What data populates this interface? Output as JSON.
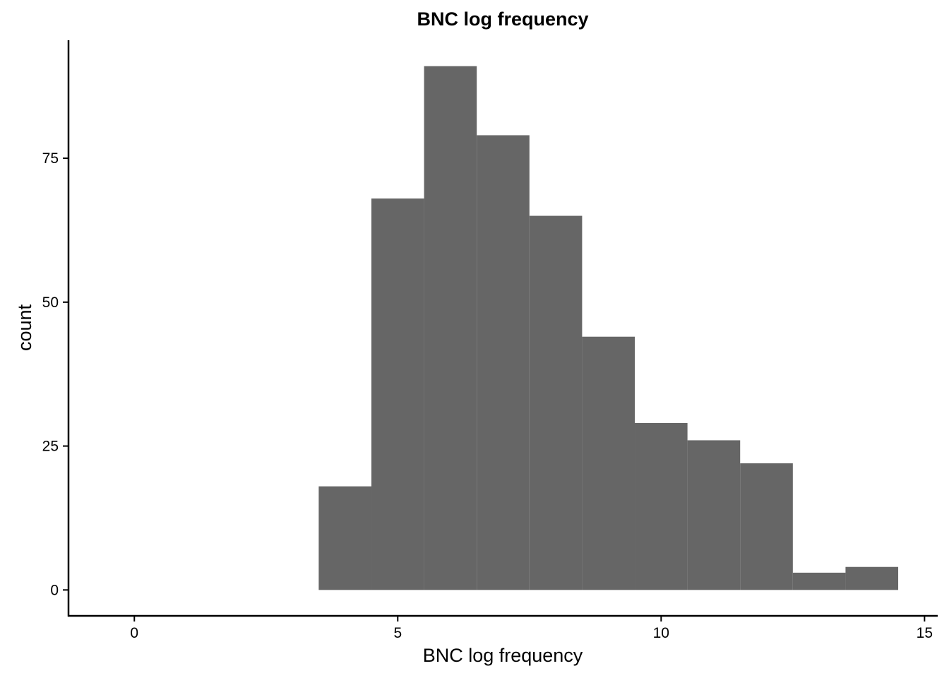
{
  "chart_data": {
    "type": "bar",
    "subtype": "histogram",
    "title": "BNC log frequency",
    "xlabel": "BNC log frequency",
    "ylabel": "count",
    "bins": [
      {
        "x0": 3.5,
        "x1": 4.5,
        "count": 18
      },
      {
        "x0": 4.5,
        "x1": 5.5,
        "count": 68
      },
      {
        "x0": 5.5,
        "x1": 6.5,
        "count": 91
      },
      {
        "x0": 6.5,
        "x1": 7.5,
        "count": 79
      },
      {
        "x0": 7.5,
        "x1": 8.5,
        "count": 65
      },
      {
        "x0": 8.5,
        "x1": 9.5,
        "count": 44
      },
      {
        "x0": 9.5,
        "x1": 10.5,
        "count": 29
      },
      {
        "x0": 10.5,
        "x1": 11.5,
        "count": 26
      },
      {
        "x0": 11.5,
        "x1": 12.5,
        "count": 22
      },
      {
        "x0": 12.5,
        "x1": 13.5,
        "count": 3
      },
      {
        "x0": 13.5,
        "x1": 14.5,
        "count": 4
      }
    ],
    "xlim": [
      -1.25,
      15.25
    ],
    "ylim": [
      -4.5,
      95.5
    ],
    "xticks": [
      0,
      5,
      10,
      15
    ],
    "xtick_labels": [
      "0",
      "5",
      "10",
      "15"
    ],
    "yticks": [
      0,
      25,
      50,
      75
    ],
    "ytick_labels": [
      "0",
      "25",
      "50",
      "75"
    ],
    "grid": false,
    "bar_color": "#666666"
  }
}
